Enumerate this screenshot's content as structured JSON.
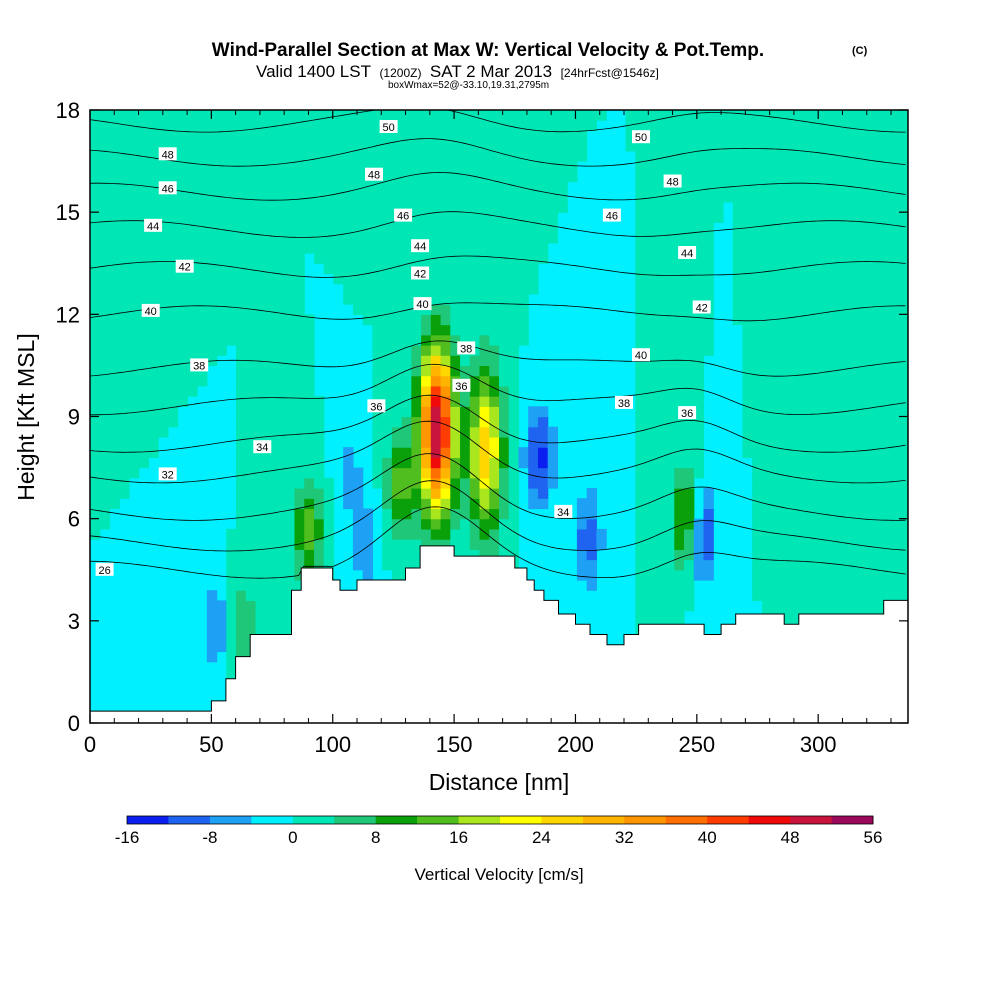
{
  "chart_data": {
    "type": "heatmap",
    "title": "Wind-Parallel Section at Max W: Vertical Velocity & Pot.Temp.",
    "title_mark": "(C)",
    "subtitle_main": "Valid 1400 LST",
    "subtitle_utc": "(1200Z)",
    "subtitle_date": "SAT 2 Mar 2013",
    "subtitle_fcst": "[24hrFcst@1546z]",
    "subtitle_box": "boxWmax=52@-33.10,19.31,2795m",
    "xlabel": "Distance [nm]",
    "ylabel": "Height [Kft MSL]",
    "xlim": [
      0,
      337
    ],
    "ylim": [
      0,
      18
    ],
    "x_ticks": [
      "0",
      "50",
      "100",
      "150",
      "200",
      "250",
      "300"
    ],
    "y_ticks": [
      "0",
      "3",
      "6",
      "9",
      "12",
      "15",
      "18"
    ],
    "colorbar": {
      "label": "Vertical Velocity [cm/s]",
      "ticks": [
        "-16",
        "-8",
        "0",
        "8",
        "16",
        "24",
        "32",
        "40",
        "48",
        "56"
      ],
      "levels": [
        -16,
        -12,
        -8,
        -4,
        0,
        4,
        8,
        12,
        16,
        20,
        24,
        28,
        32,
        36,
        40,
        44,
        48,
        52,
        56
      ],
      "colors": [
        "#0a1ef0",
        "#1e64f0",
        "#1ea0f5",
        "#00f0ff",
        "#00e6b4",
        "#1ec878",
        "#0aa00a",
        "#50be1e",
        "#aae61e",
        "#ffff00",
        "#ffd700",
        "#ffb400",
        "#ff9600",
        "#ff6e00",
        "#ff3c00",
        "#f00a0a",
        "#c8143c",
        "#9b0a5a"
      ]
    },
    "background_value": 0,
    "terrain_height_kft": [
      [
        0,
        0.35
      ],
      [
        50,
        0.35
      ],
      [
        50,
        0.65
      ],
      [
        56,
        0.65
      ],
      [
        56,
        1.3
      ],
      [
        60,
        1.3
      ],
      [
        60,
        1.95
      ],
      [
        66,
        1.95
      ],
      [
        66,
        2.6
      ],
      [
        83,
        2.6
      ],
      [
        83,
        3.9
      ],
      [
        87,
        3.9
      ],
      [
        87,
        4.55
      ],
      [
        100,
        4.55
      ],
      [
        100,
        4.2
      ],
      [
        103,
        4.2
      ],
      [
        103,
        3.9
      ],
      [
        110,
        3.9
      ],
      [
        110,
        4.2
      ],
      [
        130,
        4.2
      ],
      [
        130,
        4.55
      ],
      [
        136,
        4.55
      ],
      [
        136,
        5.2
      ],
      [
        150,
        5.2
      ],
      [
        150,
        4.9
      ],
      [
        175,
        4.9
      ],
      [
        175,
        4.55
      ],
      [
        180,
        4.55
      ],
      [
        180,
        4.2
      ],
      [
        183,
        4.2
      ],
      [
        183,
        3.9
      ],
      [
        187,
        3.9
      ],
      [
        187,
        3.6
      ],
      [
        193,
        3.6
      ],
      [
        193,
        3.2
      ],
      [
        200,
        3.2
      ],
      [
        200,
        2.9
      ],
      [
        206,
        2.9
      ],
      [
        206,
        2.6
      ],
      [
        213,
        2.6
      ],
      [
        213,
        2.3
      ],
      [
        220,
        2.3
      ],
      [
        220,
        2.6
      ],
      [
        226,
        2.6
      ],
      [
        226,
        2.9
      ],
      [
        233,
        2.9
      ],
      [
        233,
        2.9
      ],
      [
        253,
        2.9
      ],
      [
        253,
        2.6
      ],
      [
        260,
        2.6
      ],
      [
        260,
        2.9
      ],
      [
        266,
        2.9
      ],
      [
        266,
        3.2
      ],
      [
        286,
        3.2
      ],
      [
        286,
        2.9
      ],
      [
        292,
        2.9
      ],
      [
        292,
        3.2
      ],
      [
        327,
        3.2
      ],
      [
        327,
        3.6
      ],
      [
        337,
        3.6
      ]
    ],
    "velocity_features": [
      {
        "x": 52,
        "y": 2.8,
        "value": -7
      },
      {
        "x": 63,
        "y": 2.6,
        "value": 8
      },
      {
        "x": 90,
        "y": 5.6,
        "value": 14
      },
      {
        "x": 107,
        "y": 7.4,
        "value": -5
      },
      {
        "x": 113,
        "y": 5.2,
        "value": -6
      },
      {
        "x": 128,
        "y": 7.0,
        "value": 14
      },
      {
        "x": 143,
        "y": 8.6,
        "value": 52
      },
      {
        "x": 163,
        "y": 8.0,
        "value": 26
      },
      {
        "x": 185,
        "y": 7.8,
        "value": -14
      },
      {
        "x": 205,
        "y": 5.4,
        "value": -10
      },
      {
        "x": 246,
        "y": 6.0,
        "value": 16
      },
      {
        "x": 252,
        "y": 5.6,
        "value": -14
      },
      {
        "x": 30,
        "y": 16.0,
        "value": 3
      },
      {
        "x": 120,
        "y": 16.0,
        "value": 4
      },
      {
        "x": 165,
        "y": 14.0,
        "value": 4
      },
      {
        "x": 290,
        "y": 8.0,
        "value": 3
      }
    ],
    "theta_contours": [
      {
        "label": "26",
        "x": 6,
        "y": 4.5
      },
      {
        "label": "32",
        "x": 32,
        "y": 7.3
      },
      {
        "label": "34",
        "x": 71,
        "y": 8.1
      },
      {
        "label": "36",
        "x": 118,
        "y": 9.3
      },
      {
        "label": "36",
        "x": 153,
        "y": 9.9
      },
      {
        "label": "36",
        "x": 246,
        "y": 9.1
      },
      {
        "label": "34",
        "x": 195,
        "y": 6.2
      },
      {
        "label": "38",
        "x": 45,
        "y": 10.5
      },
      {
        "label": "38",
        "x": 155,
        "y": 11.0
      },
      {
        "label": "38",
        "x": 220,
        "y": 9.4
      },
      {
        "label": "40",
        "x": 25,
        "y": 12.1
      },
      {
        "label": "40",
        "x": 137,
        "y": 12.3
      },
      {
        "label": "40",
        "x": 227,
        "y": 10.8
      },
      {
        "label": "42",
        "x": 39,
        "y": 13.4
      },
      {
        "label": "42",
        "x": 136,
        "y": 13.2
      },
      {
        "label": "42",
        "x": 252,
        "y": 12.2
      },
      {
        "label": "44",
        "x": 26,
        "y": 14.6
      },
      {
        "label": "44",
        "x": 136,
        "y": 14.0
      },
      {
        "label": "44",
        "x": 246,
        "y": 13.8
      },
      {
        "label": "46",
        "x": 32,
        "y": 15.7
      },
      {
        "label": "46",
        "x": 129,
        "y": 14.9
      },
      {
        "label": "46",
        "x": 215,
        "y": 14.9
      },
      {
        "label": "48",
        "x": 32,
        "y": 16.7
      },
      {
        "label": "48",
        "x": 117,
        "y": 16.1
      },
      {
        "label": "48",
        "x": 240,
        "y": 15.9
      },
      {
        "label": "50",
        "x": 123,
        "y": 17.5
      },
      {
        "label": "50",
        "x": 227,
        "y": 17.2
      }
    ],
    "theta_baseline": [
      {
        "value": 26,
        "height": 4.5
      },
      {
        "value": 28,
        "height": 5.3
      },
      {
        "value": 30,
        "height": 6.2
      },
      {
        "value": 32,
        "height": 7.3
      },
      {
        "value": 34,
        "height": 8.2
      },
      {
        "value": 36,
        "height": 9.3
      },
      {
        "value": 38,
        "height": 10.4
      },
      {
        "value": 40,
        "height": 12.0
      },
      {
        "value": 42,
        "height": 13.3
      },
      {
        "value": 44,
        "height": 14.5
      },
      {
        "value": 46,
        "height": 15.6
      },
      {
        "value": 48,
        "height": 16.6
      },
      {
        "value": 50,
        "height": 17.6
      }
    ]
  }
}
